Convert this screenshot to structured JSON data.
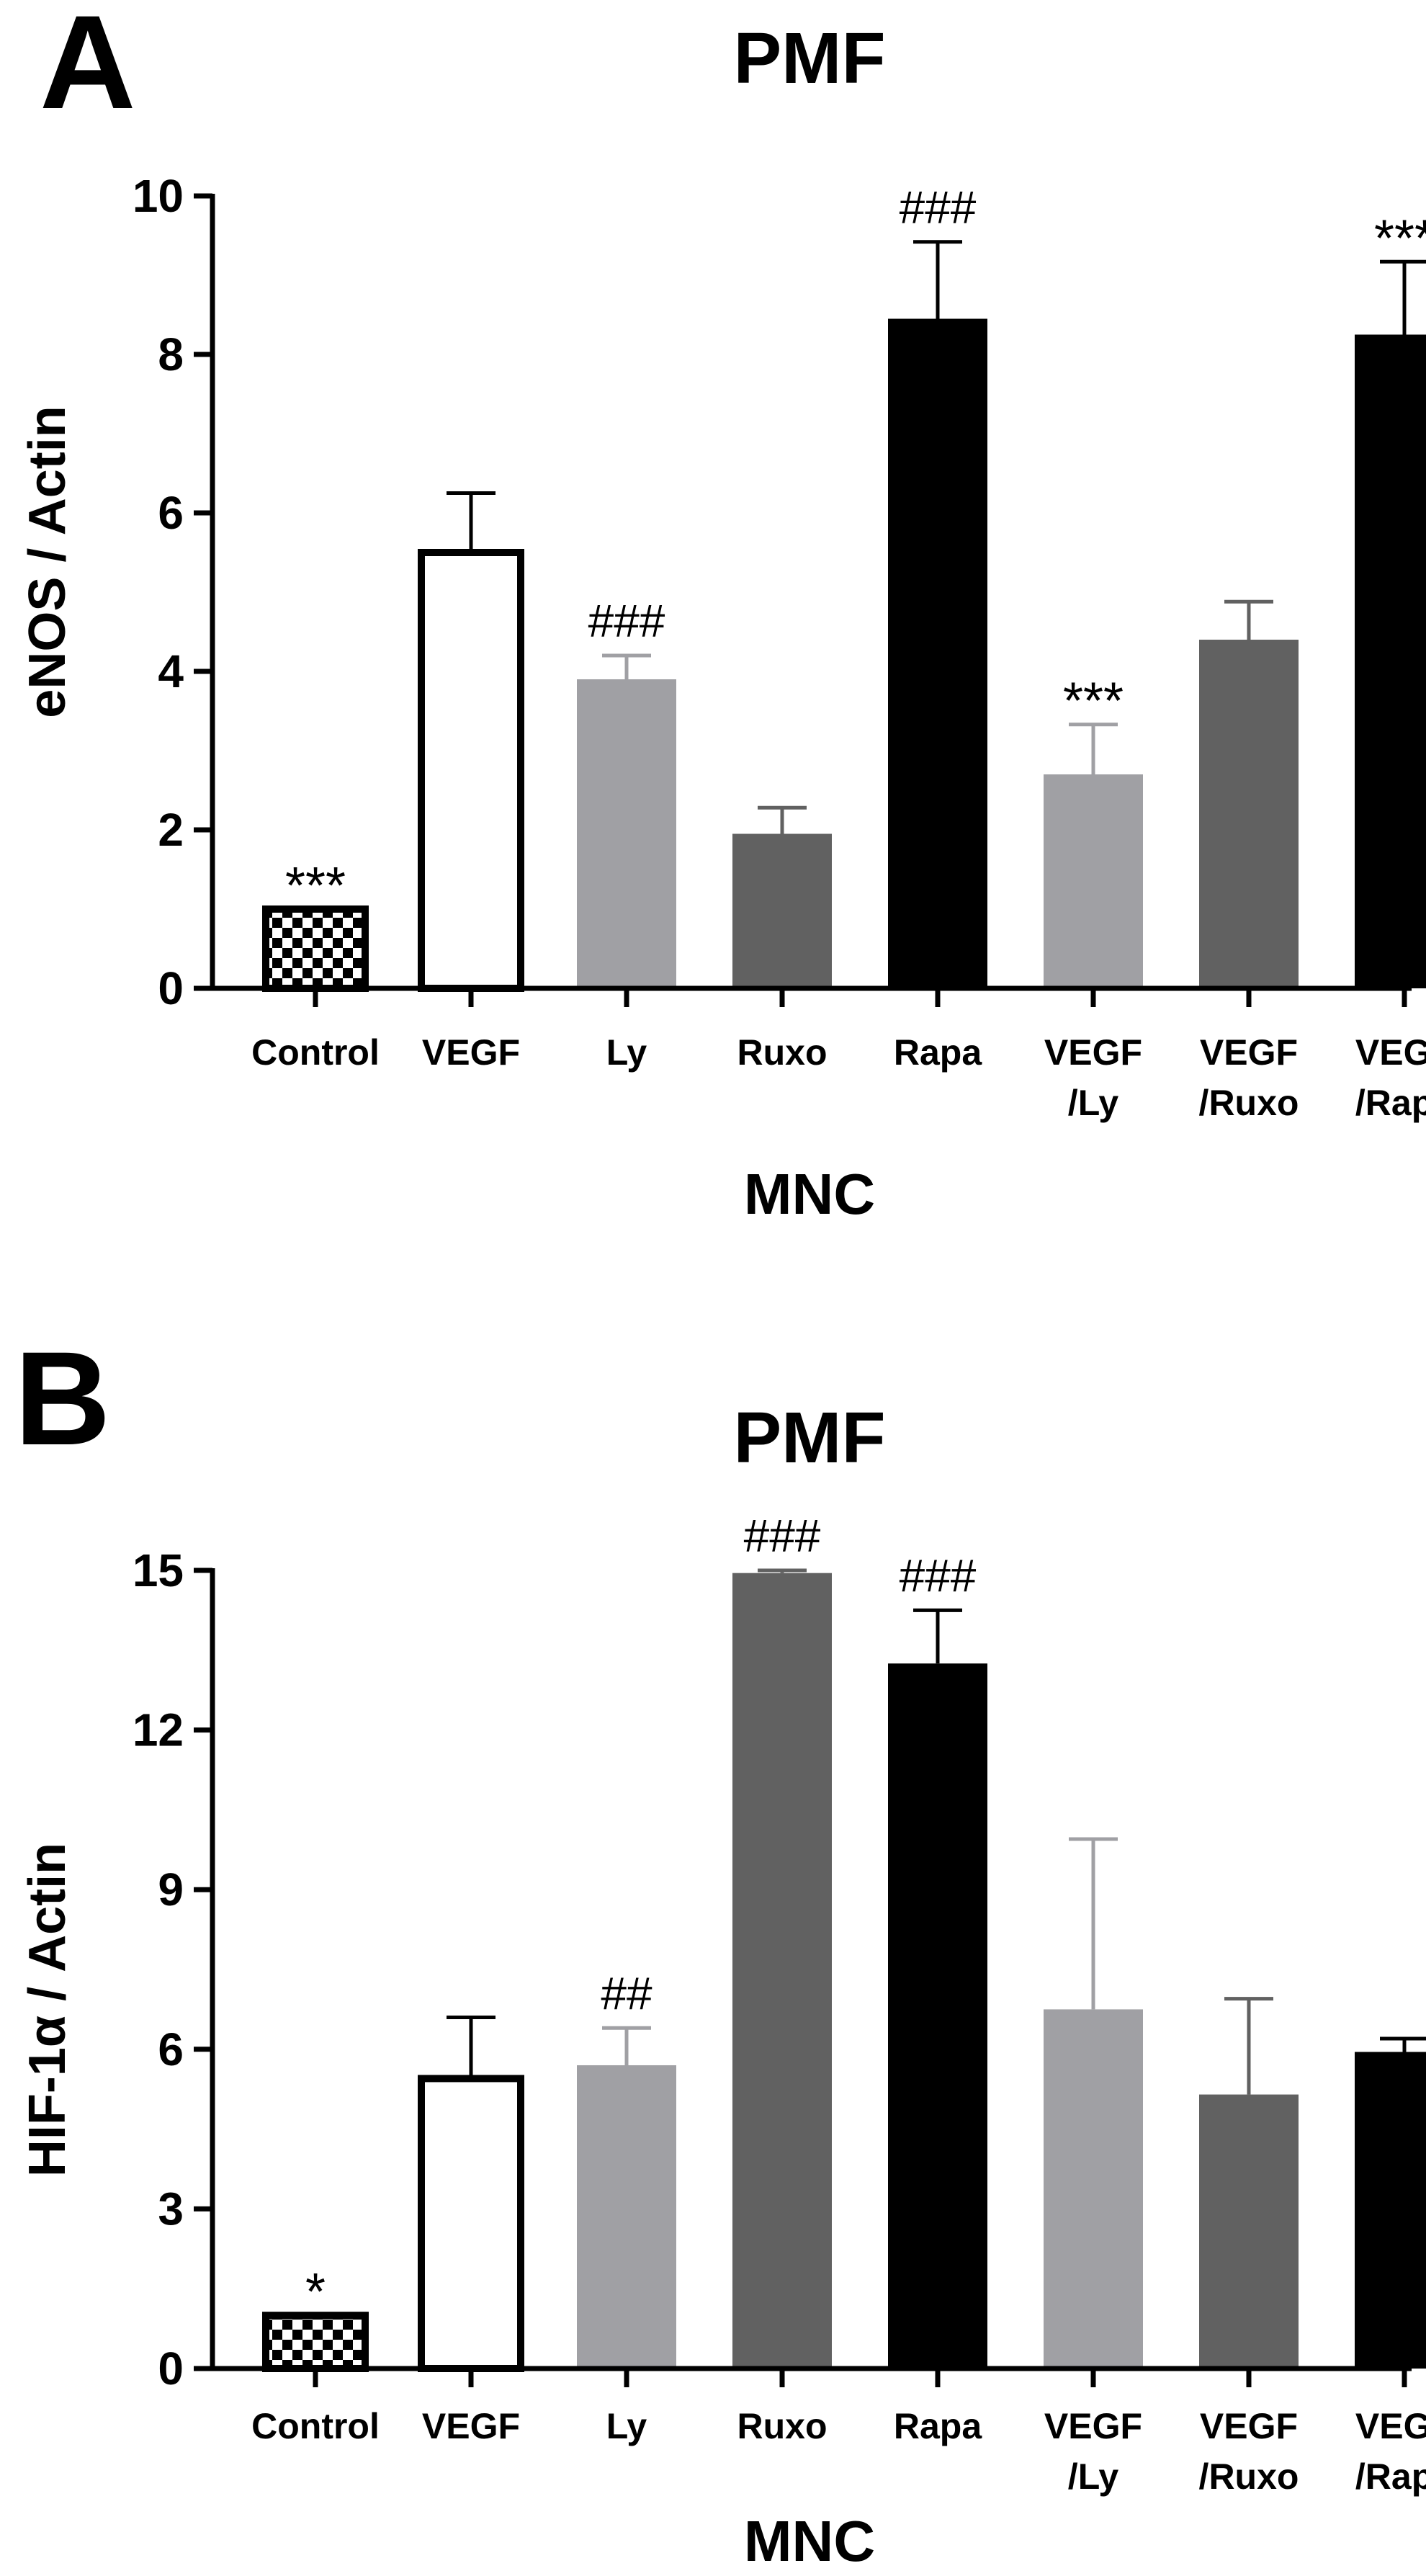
{
  "chart_data": [
    {
      "panel": "A",
      "type": "bar",
      "title": "PMF",
      "xlabel": "MNC",
      "ylabel": "eNOS / Actin",
      "ylim": [
        0,
        10
      ],
      "yticks": [
        "0",
        "2",
        "4",
        "6",
        "8",
        "10"
      ],
      "categories": [
        [
          "Control"
        ],
        [
          "VEGF"
        ],
        [
          "Ly"
        ],
        [
          "Ruxo"
        ],
        [
          "Rapa"
        ],
        [
          "VEGF",
          "/Ly"
        ],
        [
          "VEGF",
          "/Ruxo"
        ],
        [
          "VEGF",
          "/Rapa"
        ]
      ],
      "values": [
        1.0,
        5.5,
        3.9,
        1.95,
        8.45,
        2.7,
        4.4,
        8.25
      ],
      "errors": [
        0.0,
        0.75,
        0.3,
        0.33,
        0.97,
        0.63,
        0.48,
        0.92
      ],
      "annotations": [
        "***",
        "",
        "###",
        "",
        "###",
        "***",
        "",
        "***"
      ],
      "fills": [
        "checker",
        "white",
        "#a0a0a4",
        "#616161",
        "#000000",
        "#a0a0a4",
        "#616161",
        "#000000"
      ]
    },
    {
      "panel": "B",
      "type": "bar",
      "title": "PMF",
      "xlabel": "MNC",
      "ylabel": "HIF-1α / Actin",
      "ylim": [
        0,
        15
      ],
      "yticks": [
        "0",
        "3",
        "6",
        "9",
        "12",
        "15"
      ],
      "categories": [
        [
          "Control"
        ],
        [
          "VEGF"
        ],
        [
          "Ly"
        ],
        [
          "Ruxo"
        ],
        [
          "Rapa"
        ],
        [
          "VEGF",
          "/Ly"
        ],
        [
          "VEGF",
          "/Ruxo"
        ],
        [
          "VEGF",
          "/Rapa"
        ]
      ],
      "values": [
        1.0,
        5.45,
        5.7,
        14.95,
        13.25,
        6.75,
        5.15,
        5.95
      ],
      "errors": [
        0.0,
        1.15,
        0.7,
        0.05,
        1.0,
        3.2,
        1.8,
        0.25
      ],
      "annotations": [
        "*",
        "",
        "##",
        "###",
        "###",
        "",
        "",
        ""
      ],
      "fills": [
        "checker",
        "white",
        "#a0a0a4",
        "#616161",
        "#000000",
        "#a0a0a4",
        "#616161",
        "#000000"
      ]
    }
  ]
}
